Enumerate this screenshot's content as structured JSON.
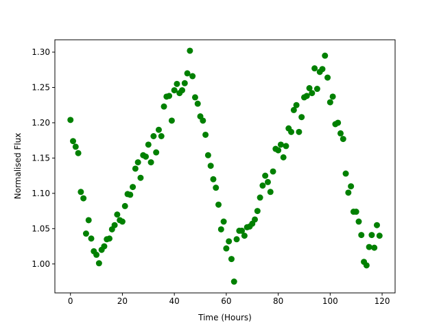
{
  "chart_data": {
    "type": "scatter",
    "x_label": "Time (Hours)",
    "y_label": "Normalised Flux",
    "color": "#008000",
    "x": [
      0,
      1,
      2,
      3,
      4,
      5,
      6,
      7,
      8,
      9,
      10,
      11,
      12,
      13,
      14,
      15,
      16,
      17,
      18,
      19,
      20,
      21,
      22,
      23,
      24,
      25,
      26,
      27,
      28,
      29,
      30,
      31,
      32,
      33,
      34,
      35,
      36,
      37,
      38,
      39,
      40,
      41,
      42,
      43,
      44,
      45,
      46,
      47,
      48,
      49,
      50,
      51,
      52,
      53,
      54,
      55,
      56,
      57,
      58,
      59,
      60,
      61,
      62,
      63,
      64,
      65,
      66,
      67,
      68,
      69,
      70,
      71,
      72,
      73,
      74,
      75,
      76,
      77,
      78,
      79,
      80,
      81,
      82,
      83,
      84,
      85,
      86,
      87,
      88,
      89,
      90,
      91,
      92,
      93,
      94,
      95,
      96,
      97,
      98,
      99,
      100,
      101,
      102,
      103,
      104,
      105,
      106,
      107,
      108,
      109,
      110,
      111,
      112,
      113,
      114,
      115,
      116,
      117,
      118,
      119
    ],
    "values": [
      1.204,
      1.174,
      1.166,
      1.157,
      1.102,
      1.093,
      1.043,
      1.062,
      1.036,
      1.018,
      1.013,
      1.001,
      1.02,
      1.025,
      1.035,
      1.036,
      1.049,
      1.055,
      1.07,
      1.062,
      1.06,
      1.082,
      1.099,
      1.098,
      1.109,
      1.135,
      1.144,
      1.122,
      1.154,
      1.152,
      1.169,
      1.144,
      1.181,
      1.158,
      1.19,
      1.181,
      1.223,
      1.237,
      1.238,
      1.203,
      1.246,
      1.255,
      1.242,
      1.246,
      1.256,
      1.27,
      1.302,
      1.266,
      1.236,
      1.227,
      1.209,
      1.203,
      1.183,
      1.154,
      1.139,
      1.12,
      1.108,
      1.084,
      1.049,
      1.06,
      1.022,
      1.032,
      1.007,
      0.975,
      1.035,
      1.047,
      1.047,
      1.04,
      1.052,
      1.053,
      1.057,
      1.063,
      1.075,
      1.094,
      1.111,
      1.125,
      1.116,
      1.102,
      1.131,
      1.163,
      1.161,
      1.169,
      1.151,
      1.167,
      1.192,
      1.187,
      1.218,
      1.225,
      1.187,
      1.208,
      1.236,
      1.238,
      1.249,
      1.242,
      1.277,
      1.248,
      1.272,
      1.276,
      1.295,
      1.264,
      1.229,
      1.237,
      1.198,
      1.2,
      1.185,
      1.177,
      1.128,
      1.101,
      1.11,
      1.074,
      1.074,
      1.06,
      1.041,
      1.003,
      0.998,
      1.024,
      1.041,
      1.023,
      1.055,
      1.04
    ],
    "xlim": [
      -6,
      125
    ],
    "ylim": [
      0.959,
      1.3175
    ],
    "xticks": [
      0,
      20,
      40,
      60,
      80,
      100,
      120
    ],
    "yticks": [
      {
        "value": 1,
        "label": "1.00"
      },
      {
        "value": 1.05,
        "label": "1.05"
      },
      {
        "value": 1.1,
        "label": "1.10"
      },
      {
        "value": 1.15,
        "label": "1.15"
      },
      {
        "value": 1.2,
        "label": "1.20"
      },
      {
        "value": 1.25,
        "label": "1.25"
      },
      {
        "value": 1.3,
        "label": "1.30"
      }
    ]
  }
}
